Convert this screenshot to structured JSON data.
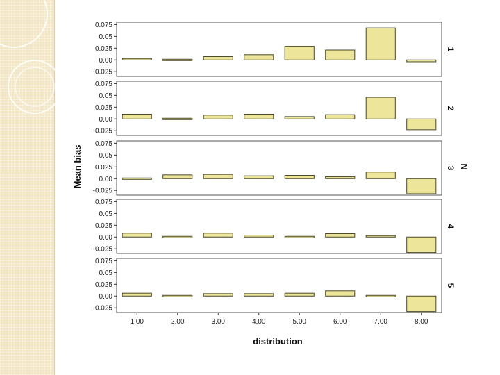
{
  "colors": {
    "bar_fill": "#ede59a",
    "bar_stroke": "#4a4a2a",
    "panel_border": "#555555",
    "side_panel": "#f3e6c4"
  },
  "chart_data": {
    "type": "bar",
    "xlabel": "distribution",
    "ylabel": "Mean bias",
    "facet_label": "N",
    "categories": [
      "1.00",
      "2.00",
      "3.00",
      "4.00",
      "5.00",
      "6.00",
      "7.00",
      "8.00"
    ],
    "yticks": [
      "0.075",
      "0.05",
      "0.025",
      "0.00",
      "-0.025"
    ],
    "ylim": [
      -0.035,
      0.08
    ],
    "grid": false,
    "panels": [
      {
        "label": "1",
        "values": [
          0.003,
          -0.002,
          0.007,
          0.011,
          0.029,
          0.021,
          0.068,
          -0.004
        ]
      },
      {
        "label": "2",
        "values": [
          0.01,
          0.002,
          0.008,
          0.01,
          0.005,
          0.009,
          0.046,
          -0.023
        ]
      },
      {
        "label": "3",
        "values": [
          0.002,
          0.008,
          0.009,
          0.006,
          0.007,
          0.004,
          0.014,
          -0.032
        ]
      },
      {
        "label": "4",
        "values": [
          0.008,
          0.001,
          0.008,
          0.004,
          0.001,
          0.007,
          0.003,
          -0.033
        ]
      },
      {
        "label": "5",
        "values": [
          0.006,
          0.001,
          0.005,
          0.005,
          0.006,
          0.011,
          -0.002,
          -0.033
        ]
      }
    ]
  }
}
